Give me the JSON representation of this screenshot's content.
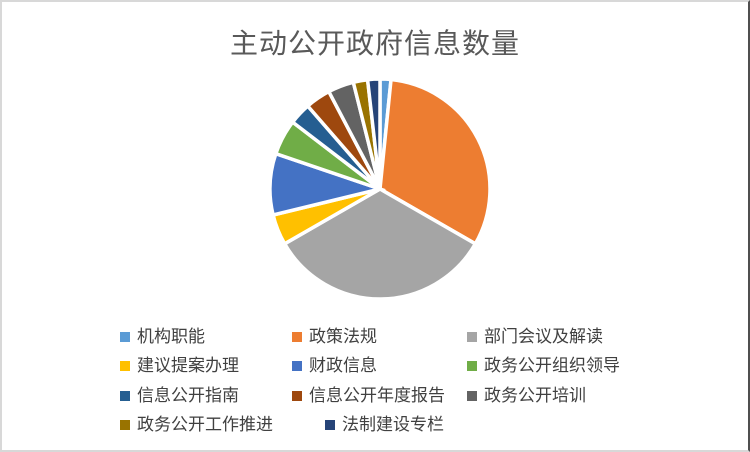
{
  "window": {
    "background": "#ffffff",
    "frame_border_color": "#d8d8d8",
    "frame_right_border_color": "#4f4f4f"
  },
  "chart_data": {
    "type": "pie",
    "title": "主动公开政府信息数量",
    "categories": [
      "机构职能",
      "政策法规",
      "部门会议及解读",
      "建议提案办理",
      "财政信息",
      "政务公开组织领导",
      "信息公开指南",
      "信息公开年度报告",
      "政务公开培训",
      "政务公开工作推进",
      "法制建设专栏"
    ],
    "values": [
      1.6,
      31.7,
      33.4,
      4.5,
      9.0,
      5.2,
      3.2,
      3.7,
      3.8,
      2.1,
      1.8
    ],
    "value_unit": "% (estimated from slice angles)",
    "colors": [
      "#5B9BD5",
      "#ED7D31",
      "#A5A5A5",
      "#FFC000",
      "#4472C4",
      "#70AD47",
      "#255E91",
      "#9E480E",
      "#636363",
      "#997300",
      "#264478"
    ],
    "start_angle_deg": 0,
    "direction": "clockwise",
    "slice_border_color": "#FFFFFF",
    "legend_position": "bottom",
    "title_color": "#595959",
    "legend_text_color": "#404040"
  }
}
